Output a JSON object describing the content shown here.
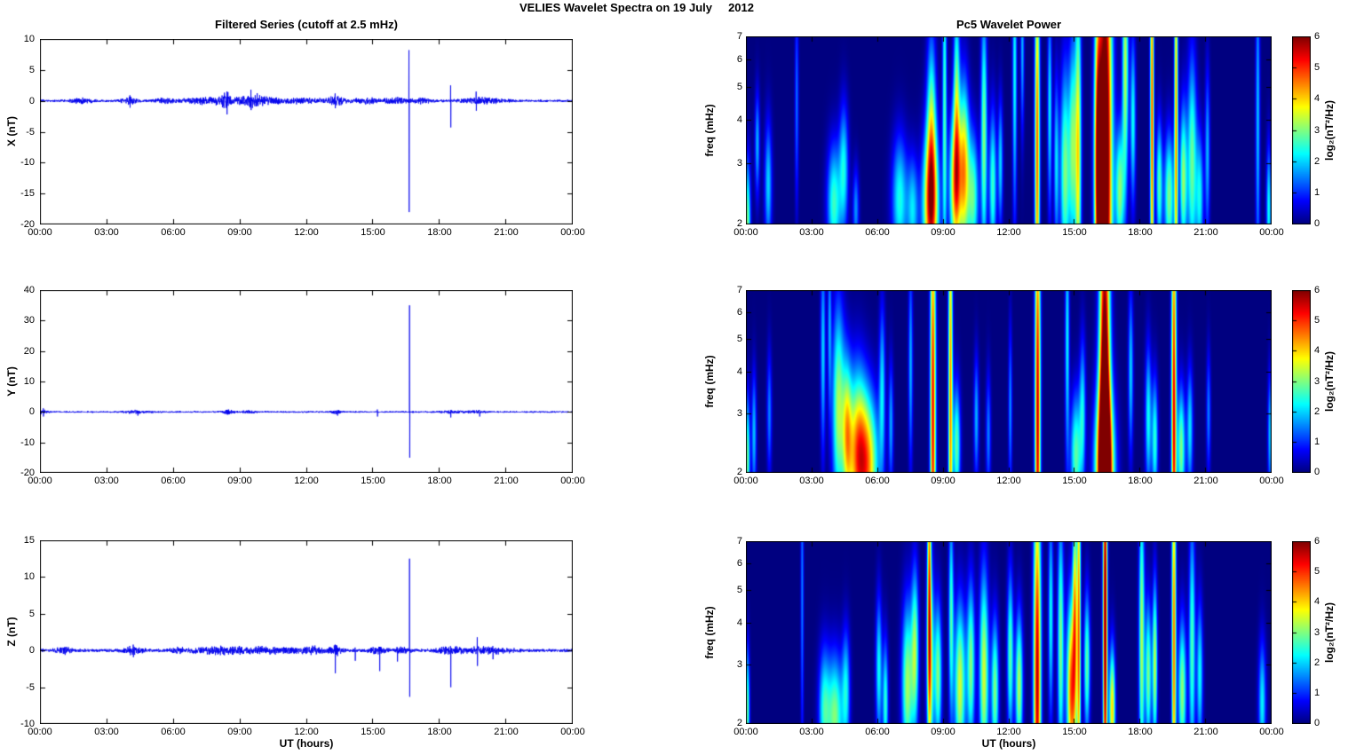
{
  "suptitle": "VELIES Wavelet Spectra on 19 July     2012",
  "time_axis": {
    "label": "UT (hours)",
    "tick_hours": [
      0,
      3,
      6,
      9,
      12,
      15,
      18,
      21,
      24
    ],
    "tick_labels": [
      "00:00",
      "03:00",
      "06:00",
      "09:00",
      "12:00",
      "15:00",
      "18:00",
      "21:00",
      "00:00"
    ]
  },
  "left_column": {
    "title": "Filtered Series (cutoff at 2.5 mHz)",
    "xlabel": "UT (hours)"
  },
  "right_column": {
    "title": "Pc5 Wavelet Power",
    "xlabel": "UT (hours)",
    "ylabel": "freq (mHz)",
    "freq_ticks": [
      7,
      6,
      5,
      4,
      3,
      2
    ],
    "freq_range_mHz": [
      2,
      7
    ],
    "colorbar": {
      "label": "log₂(nT²/Hz)",
      "ticks": [
        6,
        5,
        4,
        3,
        2,
        1,
        0
      ],
      "range": [
        0,
        6
      ],
      "colormap": "jet"
    }
  },
  "line_color": "#0000EE",
  "chart_data": [
    {
      "type": "line",
      "title": "Filtered Series (cutoff at 2.5 mHz)",
      "component": "X",
      "ylabel": "X (nT)",
      "xlabel": "UT (hours)",
      "ylim": [
        -20,
        10
      ],
      "yticks": [
        10,
        5,
        0,
        -5,
        -10,
        -15,
        -20
      ],
      "x_range_hours": [
        0,
        24
      ],
      "baseline": 0,
      "noise_amp": 0.22,
      "noise_bursts": [
        [
          1.5,
          2.2,
          0.4
        ],
        [
          3.8,
          4.3,
          0.6
        ],
        [
          5.3,
          5.8,
          0.35
        ],
        [
          6.8,
          9.0,
          0.6
        ],
        [
          8.2,
          8.6,
          0.9
        ],
        [
          9.3,
          10.0,
          0.8
        ],
        [
          10.2,
          12.3,
          0.5
        ],
        [
          13.0,
          13.6,
          0.7
        ],
        [
          14.3,
          15.3,
          0.5
        ],
        [
          15.8,
          16.4,
          0.6
        ],
        [
          16.9,
          17.5,
          0.4
        ],
        [
          19.2,
          20.6,
          0.5
        ]
      ],
      "spikes": [
        [
          16.62,
          8.2,
          -18.0
        ],
        [
          18.5,
          2.5,
          -4.3
        ],
        [
          19.65,
          1.5,
          -1.6
        ],
        [
          8.42,
          1.5,
          -2.2
        ],
        [
          9.5,
          1.8,
          -1.5
        ],
        [
          13.3,
          1.2,
          -1.2
        ],
        [
          4.05,
          0.9,
          -1.1
        ]
      ]
    },
    {
      "type": "line",
      "title": "Filtered Series (cutoff at 2.5 mHz)",
      "component": "Y",
      "ylabel": "Y (nT)",
      "xlabel": "UT (hours)",
      "ylim": [
        -20,
        40
      ],
      "yticks": [
        40,
        30,
        20,
        10,
        0,
        -10,
        -20
      ],
      "x_range_hours": [
        0,
        24
      ],
      "baseline": 0,
      "noise_amp": 0.3,
      "noise_bursts": [
        [
          0.0,
          0.3,
          0.6
        ],
        [
          4.0,
          4.8,
          0.5
        ],
        [
          8.3,
          8.7,
          0.7
        ],
        [
          9.2,
          9.6,
          0.5
        ],
        [
          13.2,
          13.5,
          0.6
        ],
        [
          18.2,
          19.0,
          0.4
        ],
        [
          19.4,
          19.9,
          0.5
        ]
      ],
      "spikes": [
        [
          16.65,
          35.0,
          -15.0
        ],
        [
          15.2,
          0.8,
          -1.5
        ],
        [
          18.5,
          0.6,
          -1.8
        ],
        [
          19.8,
          0.5,
          -1.5
        ],
        [
          13.4,
          0.5,
          -1.2
        ],
        [
          4.4,
          0.4,
          -1.2
        ],
        [
          8.5,
          0.8,
          -0.8
        ],
        [
          0.15,
          1.2,
          -1.5
        ]
      ]
    },
    {
      "type": "line",
      "title": "Filtered Series (cutoff at 2.5 mHz)",
      "component": "Z",
      "ylabel": "Z (nT)",
      "xlabel": "UT (hours)",
      "ylim": [
        -10,
        15
      ],
      "yticks": [
        15,
        10,
        5,
        0,
        -5,
        -10
      ],
      "x_range_hours": [
        0,
        24
      ],
      "baseline": 0,
      "noise_amp": 0.25,
      "noise_bursts": [
        [
          0.8,
          1.3,
          0.4
        ],
        [
          3.9,
          4.5,
          0.5
        ],
        [
          6.0,
          6.4,
          0.4
        ],
        [
          7.2,
          8.8,
          0.5
        ],
        [
          9.5,
          11.5,
          0.45
        ],
        [
          12.0,
          12.6,
          0.4
        ],
        [
          13.1,
          13.5,
          0.6
        ],
        [
          14.9,
          15.5,
          0.4
        ],
        [
          16.0,
          16.5,
          0.5
        ],
        [
          18.0,
          18.8,
          0.45
        ],
        [
          19.3,
          20.8,
          0.45
        ]
      ],
      "spikes": [
        [
          16.65,
          12.5,
          -6.3
        ],
        [
          13.3,
          0.8,
          -3.1
        ],
        [
          15.3,
          0.5,
          -2.8
        ],
        [
          16.1,
          0.4,
          -1.5
        ],
        [
          18.5,
          0.5,
          -5.0
        ],
        [
          19.7,
          1.8,
          -2.1
        ],
        [
          14.2,
          0.4,
          -1.4
        ],
        [
          20.4,
          0.6,
          -1.2
        ],
        [
          4.2,
          0.8,
          -0.9
        ]
      ]
    },
    {
      "type": "heatmap",
      "title": "Pc5 Wavelet Power",
      "component": "X",
      "ylabel": "freq (mHz)",
      "xlabel": "UT (hours)",
      "yscale": "log",
      "freq_range_mHz": [
        2,
        7
      ],
      "value_range_log2": [
        0,
        6
      ],
      "colormap": "jet",
      "events_format": "[hour, hour_sigma, freq_center_mHz, freq_sigma_log, peak_log2_power]",
      "events": [
        [
          0.05,
          0.1,
          2.0,
          0.3,
          3.0
        ],
        [
          0.5,
          0.08,
          3.4,
          0.25,
          1.8
        ],
        [
          1.0,
          0.12,
          2.6,
          0.3,
          2.0
        ],
        [
          2.3,
          0.06,
          4.5,
          0.5,
          1.4
        ],
        [
          4.0,
          0.22,
          2.3,
          0.28,
          2.6
        ],
        [
          4.45,
          0.15,
          2.9,
          0.3,
          2.2
        ],
        [
          5.0,
          0.1,
          2.2,
          0.2,
          1.6
        ],
        [
          7.0,
          0.25,
          2.35,
          0.3,
          2.4
        ],
        [
          7.6,
          0.18,
          2.2,
          0.25,
          2.0
        ],
        [
          8.42,
          0.26,
          2.25,
          0.35,
          4.9
        ],
        [
          8.45,
          0.15,
          3.8,
          0.45,
          2.8
        ],
        [
          9.05,
          0.07,
          4.5,
          0.8,
          2.6
        ],
        [
          9.55,
          0.2,
          2.6,
          0.35,
          4.3
        ],
        [
          9.6,
          0.1,
          4.8,
          0.5,
          2.6
        ],
        [
          9.95,
          0.16,
          2.9,
          0.4,
          3.8
        ],
        [
          10.35,
          0.18,
          2.4,
          0.3,
          2.8
        ],
        [
          10.85,
          0.1,
          3.6,
          0.6,
          3.0
        ],
        [
          11.25,
          0.12,
          2.6,
          0.35,
          2.6
        ],
        [
          11.6,
          0.08,
          3.0,
          0.3,
          2.0
        ],
        [
          12.25,
          0.07,
          5.5,
          0.7,
          2.3
        ],
        [
          12.6,
          0.06,
          6.5,
          0.4,
          1.8
        ],
        [
          13.28,
          0.08,
          3.3,
          1.0,
          4.7
        ],
        [
          13.85,
          0.07,
          4.3,
          0.5,
          2.2
        ],
        [
          14.15,
          0.08,
          3.0,
          0.4,
          2.0
        ],
        [
          14.55,
          0.16,
          2.8,
          0.5,
          3.0
        ],
        [
          14.9,
          0.12,
          3.4,
          0.5,
          2.8
        ],
        [
          15.15,
          0.1,
          3.2,
          0.8,
          3.7
        ],
        [
          16.05,
          0.12,
          3.0,
          0.7,
          5.0
        ],
        [
          16.38,
          0.22,
          2.9,
          1.3,
          7.5
        ],
        [
          17.05,
          0.14,
          2.5,
          0.3,
          3.0
        ],
        [
          17.3,
          0.1,
          5.8,
          0.6,
          3.3
        ],
        [
          17.65,
          0.09,
          4.0,
          0.4,
          2.3
        ],
        [
          18.52,
          0.06,
          4.0,
          1.1,
          4.9
        ],
        [
          18.85,
          0.1,
          2.6,
          0.3,
          2.7
        ],
        [
          19.3,
          0.16,
          2.4,
          0.3,
          3.0
        ],
        [
          19.62,
          0.06,
          4.0,
          1.0,
          4.3
        ],
        [
          19.95,
          0.12,
          2.7,
          0.35,
          3.1
        ],
        [
          20.35,
          0.15,
          3.0,
          0.5,
          2.9
        ],
        [
          20.7,
          0.12,
          2.4,
          0.3,
          2.2
        ],
        [
          21.05,
          0.08,
          3.2,
          0.4,
          1.8
        ],
        [
          23.35,
          0.07,
          4.0,
          0.8,
          1.9
        ],
        [
          23.85,
          0.08,
          2.2,
          0.3,
          2.3
        ]
      ]
    },
    {
      "type": "heatmap",
      "title": "Pc5 Wavelet Power",
      "component": "Y",
      "ylabel": "freq (mHz)",
      "xlabel": "UT (hours)",
      "yscale": "log",
      "freq_range_mHz": [
        2,
        7
      ],
      "value_range_log2": [
        0,
        6
      ],
      "colormap": "jet",
      "events_format": "[hour, hour_sigma, freq_center_mHz, freq_sigma_log, peak_log2_power]",
      "events": [
        [
          0.05,
          0.08,
          2.2,
          0.3,
          2.9
        ],
        [
          0.35,
          0.08,
          2.6,
          0.3,
          1.9
        ],
        [
          1.05,
          0.08,
          3.0,
          0.3,
          1.5
        ],
        [
          3.5,
          0.08,
          4.6,
          0.5,
          2.0
        ],
        [
          3.8,
          0.06,
          5.5,
          0.4,
          1.6
        ],
        [
          4.2,
          0.2,
          3.1,
          0.5,
          3.2
        ],
        [
          4.6,
          0.15,
          2.6,
          0.35,
          3.0
        ],
        [
          5.05,
          0.3,
          2.3,
          0.4,
          3.7
        ],
        [
          5.55,
          0.35,
          2.1,
          0.35,
          3.9
        ],
        [
          6.2,
          0.1,
          3.6,
          0.4,
          2.0
        ],
        [
          6.6,
          0.08,
          2.8,
          0.3,
          1.7
        ],
        [
          7.5,
          0.07,
          4.2,
          0.5,
          1.8
        ],
        [
          8.52,
          0.09,
          3.0,
          1.2,
          5.3
        ],
        [
          9.32,
          0.07,
          3.5,
          1.2,
          4.4
        ],
        [
          9.6,
          0.12,
          2.4,
          0.3,
          2.8
        ],
        [
          10.5,
          0.08,
          2.9,
          0.3,
          1.8
        ],
        [
          11.05,
          0.08,
          2.6,
          0.3,
          1.5
        ],
        [
          12.05,
          0.06,
          3.1,
          0.4,
          1.6
        ],
        [
          13.3,
          0.09,
          2.9,
          1.2,
          5.6
        ],
        [
          14.65,
          0.07,
          5.0,
          0.6,
          2.2
        ],
        [
          15.05,
          0.18,
          2.25,
          0.3,
          2.8
        ],
        [
          15.35,
          0.1,
          3.1,
          0.35,
          2.0
        ],
        [
          16.36,
          0.17,
          2.9,
          1.3,
          7.2
        ],
        [
          16.36,
          0.3,
          2.0,
          0.4,
          6.0
        ],
        [
          17.55,
          0.08,
          4.0,
          0.4,
          2.0
        ],
        [
          18.35,
          0.1,
          2.9,
          0.35,
          2.3
        ],
        [
          18.65,
          0.1,
          2.5,
          0.3,
          2.5
        ],
        [
          19.52,
          0.08,
          3.0,
          1.2,
          5.4
        ],
        [
          19.85,
          0.13,
          2.35,
          0.3,
          3.0
        ],
        [
          20.25,
          0.1,
          2.7,
          0.3,
          2.1
        ],
        [
          21.1,
          0.07,
          3.0,
          0.3,
          1.5
        ],
        [
          23.9,
          0.07,
          2.6,
          0.3,
          1.9
        ]
      ]
    },
    {
      "type": "heatmap",
      "title": "Pc5 Wavelet Power",
      "component": "Z",
      "ylabel": "freq (mHz)",
      "xlabel": "UT (hours)",
      "yscale": "log",
      "freq_range_mHz": [
        2,
        7
      ],
      "value_range_log2": [
        0,
        6
      ],
      "colormap": "jet",
      "events_format": "[hour, hour_sigma, freq_center_mHz, freq_sigma_log, peak_log2_power]",
      "events": [
        [
          0.05,
          0.07,
          2.2,
          0.3,
          2.8
        ],
        [
          2.55,
          0.05,
          5.0,
          0.8,
          1.5
        ],
        [
          3.55,
          0.18,
          2.2,
          0.3,
          2.3
        ],
        [
          4.05,
          0.25,
          2.1,
          0.3,
          3.0
        ],
        [
          4.55,
          0.13,
          2.5,
          0.3,
          2.1
        ],
        [
          6.05,
          0.1,
          2.9,
          0.35,
          2.3
        ],
        [
          6.35,
          0.09,
          2.3,
          0.3,
          2.5
        ],
        [
          7.35,
          0.18,
          2.6,
          0.4,
          3.2
        ],
        [
          7.7,
          0.12,
          3.3,
          0.4,
          3.0
        ],
        [
          8.35,
          0.06,
          6.0,
          0.8,
          3.8
        ],
        [
          8.4,
          0.12,
          3.0,
          0.5,
          3.2
        ],
        [
          8.75,
          0.12,
          2.8,
          0.35,
          3.0
        ],
        [
          9.35,
          0.08,
          4.2,
          0.5,
          2.6
        ],
        [
          9.75,
          0.18,
          2.6,
          0.4,
          3.5
        ],
        [
          10.25,
          0.13,
          3.0,
          0.4,
          3.0
        ],
        [
          10.85,
          0.15,
          2.8,
          0.5,
          3.5
        ],
        [
          11.35,
          0.12,
          2.5,
          0.35,
          3.0
        ],
        [
          12.05,
          0.1,
          3.2,
          0.4,
          2.8
        ],
        [
          12.45,
          0.12,
          2.6,
          0.35,
          3.3
        ],
        [
          13.28,
          0.12,
          2.7,
          1.0,
          5.7
        ],
        [
          13.9,
          0.08,
          4.2,
          0.5,
          2.3
        ],
        [
          14.35,
          0.1,
          3.5,
          0.6,
          3.0
        ],
        [
          14.85,
          0.16,
          2.5,
          0.45,
          4.9
        ],
        [
          15.0,
          0.07,
          4.8,
          0.5,
          3.4
        ],
        [
          15.18,
          0.06,
          4.0,
          1.0,
          4.3
        ],
        [
          15.55,
          0.1,
          3.0,
          0.35,
          2.8
        ],
        [
          16.38,
          0.07,
          4.0,
          1.2,
          6.3
        ],
        [
          16.7,
          0.1,
          2.2,
          0.3,
          4.0
        ],
        [
          18.05,
          0.09,
          3.6,
          0.7,
          3.3
        ],
        [
          18.35,
          0.1,
          2.8,
          0.35,
          3.0
        ],
        [
          18.65,
          0.08,
          3.0,
          0.4,
          3.4
        ],
        [
          19.52,
          0.07,
          3.5,
          1.1,
          4.6
        ],
        [
          19.9,
          0.13,
          2.5,
          0.35,
          3.1
        ],
        [
          20.35,
          0.1,
          3.4,
          0.6,
          2.7
        ],
        [
          20.7,
          0.1,
          2.8,
          0.35,
          2.3
        ],
        [
          23.55,
          0.12,
          2.3,
          0.3,
          2.2
        ]
      ]
    }
  ]
}
